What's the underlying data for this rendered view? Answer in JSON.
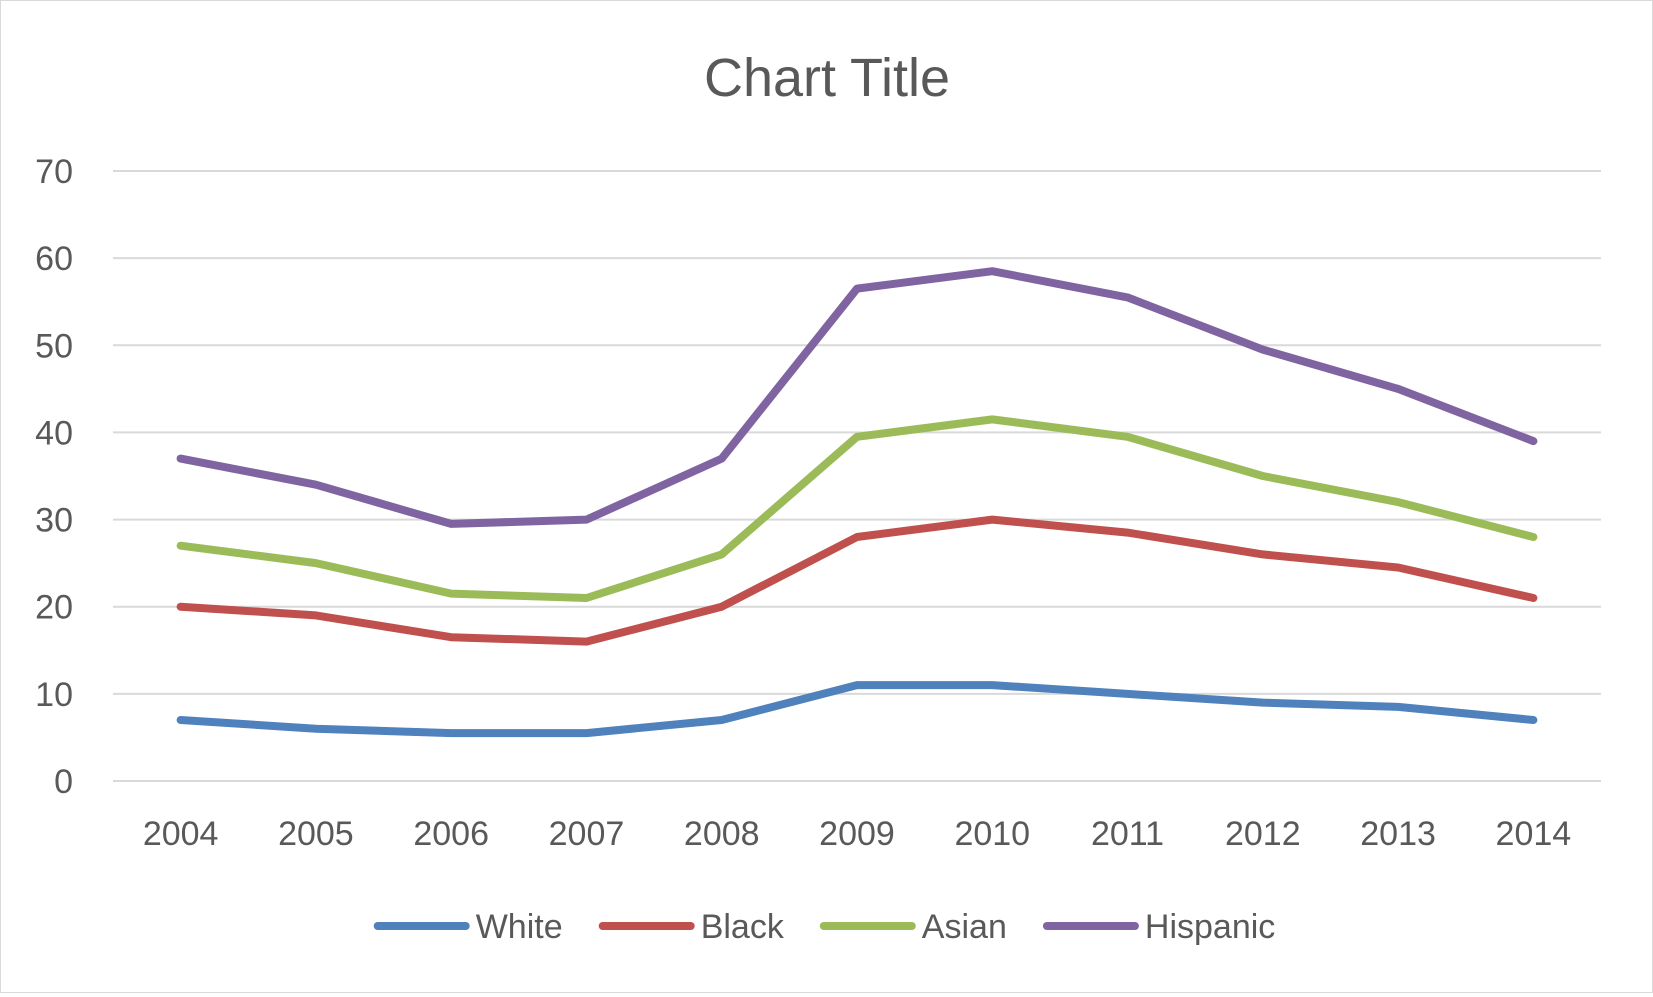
{
  "chart_data": {
    "type": "line",
    "title": "Chart Title",
    "xlabel": "",
    "ylabel": "",
    "x": [
      "2004",
      "2005",
      "2006",
      "2007",
      "2008",
      "2009",
      "2010",
      "2011",
      "2012",
      "2013",
      "2014"
    ],
    "ylim": [
      0,
      70
    ],
    "yticks": [
      0,
      10,
      20,
      30,
      40,
      50,
      60,
      70
    ],
    "grid": true,
    "legend_position": "bottom",
    "series": [
      {
        "name": "White",
        "color": "#4f81bd",
        "values": [
          7,
          6,
          5.5,
          5.5,
          7,
          11,
          11,
          10,
          9,
          8.5,
          7
        ]
      },
      {
        "name": "Black",
        "color": "#c0504d",
        "values": [
          20,
          19,
          16.5,
          16,
          20,
          28,
          30,
          28.5,
          26,
          24.5,
          21
        ]
      },
      {
        "name": "Asian",
        "color": "#9bbb59",
        "values": [
          27,
          25,
          21.5,
          21,
          26,
          39.5,
          41.5,
          39.5,
          35,
          32,
          28
        ]
      },
      {
        "name": "Hispanic",
        "color": "#8064a2",
        "values": [
          37,
          34,
          29.5,
          30,
          37,
          56.5,
          58.5,
          55.5,
          49.5,
          45,
          39
        ]
      }
    ]
  }
}
